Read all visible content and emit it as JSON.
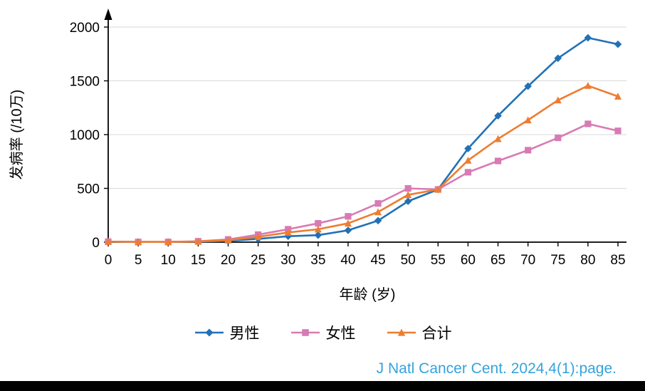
{
  "chart_data": {
    "type": "line",
    "x": [
      0,
      5,
      10,
      15,
      20,
      25,
      30,
      35,
      40,
      45,
      50,
      55,
      60,
      65,
      70,
      75,
      80,
      85
    ],
    "series": [
      {
        "name": "男性",
        "marker": "diamond",
        "color": "#2271B5",
        "values": [
          5,
          2,
          2,
          5,
          12,
          30,
          55,
          65,
          110,
          200,
          380,
          490,
          870,
          1175,
          1450,
          1710,
          1900,
          1840
        ]
      },
      {
        "name": "女性",
        "marker": "square",
        "color": "#D77BB4",
        "values": [
          5,
          2,
          2,
          8,
          25,
          70,
          120,
          175,
          240,
          360,
          500,
          490,
          650,
          755,
          855,
          970,
          1100,
          1035
        ]
      },
      {
        "name": "合计",
        "marker": "triangle",
        "color": "#ED7D31",
        "values": [
          5,
          2,
          2,
          6,
          18,
          50,
          90,
          120,
          175,
          280,
          440,
          490,
          760,
          960,
          1135,
          1320,
          1455,
          1355
        ]
      }
    ],
    "title": "",
    "xlabel": "年龄 (岁)",
    "ylabel": "发病率 (/10万)",
    "xlim": [
      0,
      85
    ],
    "ylim": [
      0,
      2000
    ],
    "xticks": [
      0,
      5,
      10,
      15,
      20,
      25,
      30,
      35,
      40,
      45,
      50,
      55,
      60,
      65,
      70,
      75,
      80,
      85
    ],
    "yticks": [
      0,
      500,
      1000,
      1500,
      2000
    ],
    "grid": "horizontal",
    "gridline_color": "#D9D9D9",
    "axis_color": "#000000",
    "legend_position": "bottom"
  },
  "citation": {
    "text": "J Natl Cancer Cent. 2024,4(1):page.",
    "color": "#35A3DC"
  },
  "footer": {
    "bar_color": "#000000"
  }
}
